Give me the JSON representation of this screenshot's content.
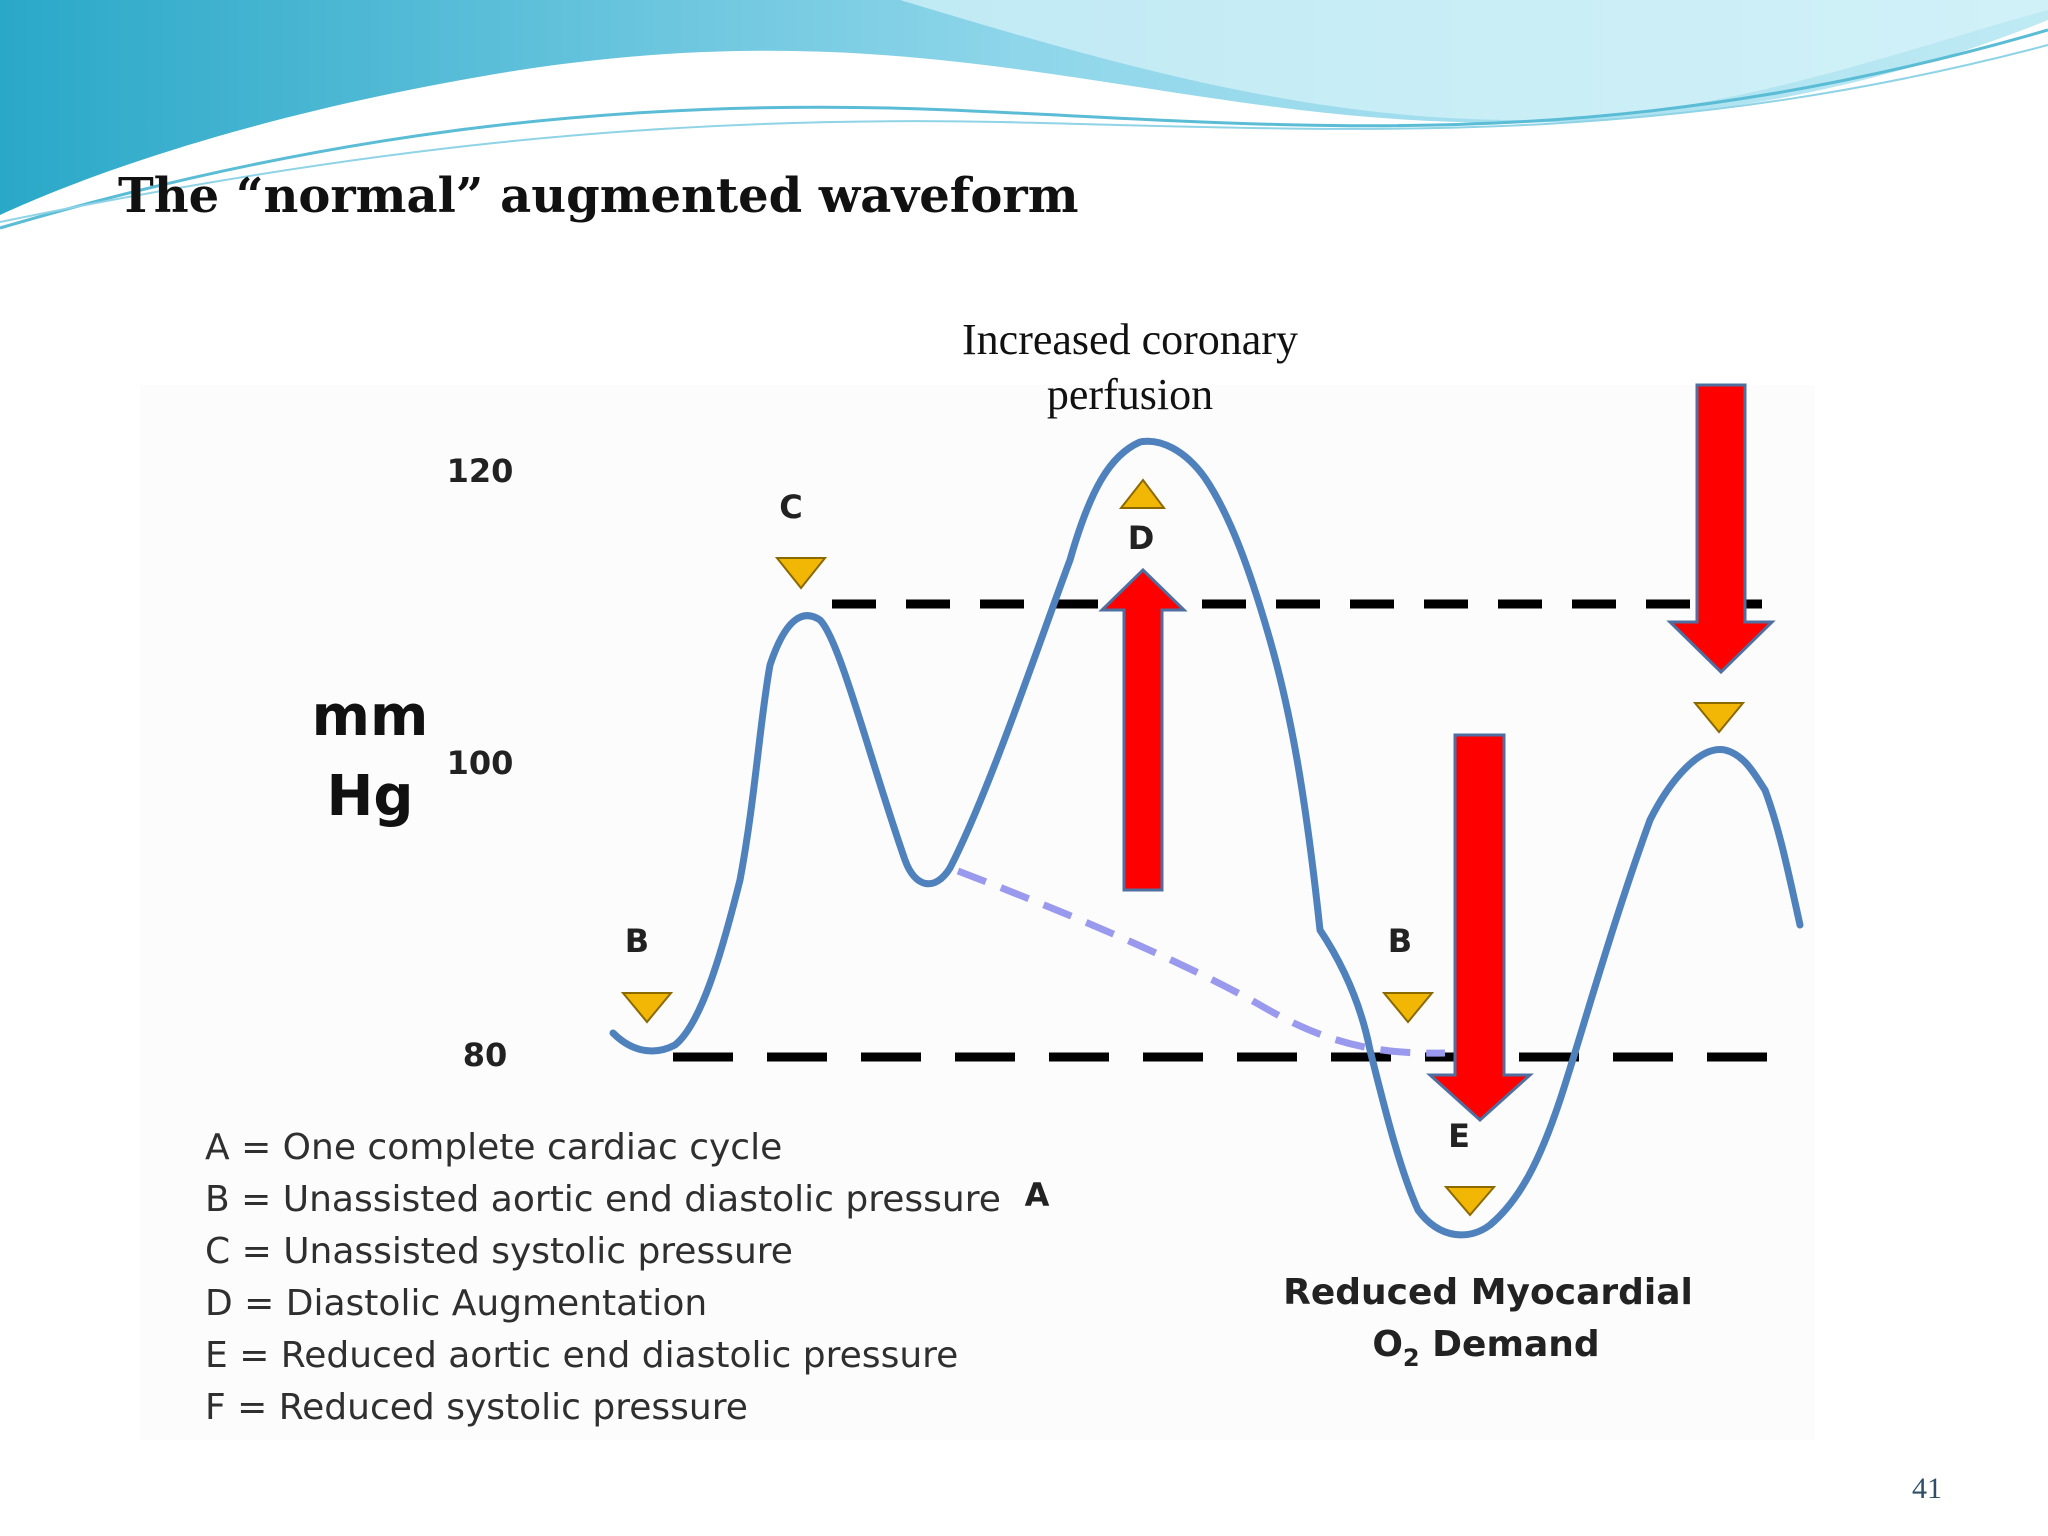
{
  "slide": {
    "title": "The “normal” augmented waveform",
    "page_number": "41"
  },
  "diagram": {
    "caption_line1": "Increased coronary",
    "caption_line2": "perfusion",
    "y_axis": {
      "label_line1": "mm",
      "label_line2": "Hg",
      "ticks": [
        "120",
        "100",
        "80"
      ]
    },
    "point_labels": {
      "b_first": "B",
      "c": "C",
      "d": "D",
      "b_second": "B",
      "e": "E",
      "a": "A"
    },
    "note_line1": "Reduced Myocardial",
    "note_line2_main": "O",
    "note_line2_sub": "2",
    "note_line2_rest": " Demand",
    "legend": [
      "A = One complete cardiac cycle",
      "B = Unassisted aortic end diastolic pressure",
      "C = Unassisted systolic pressure",
      "D = Diastolic Augmentation",
      "E = Reduced aortic end diastolic pressure",
      "F = Reduced systolic pressure"
    ],
    "colors": {
      "waveform": "#4f81bd",
      "unassisted_dashed": "#9999ee",
      "arrow": "#ff0000",
      "marker": "#f2b705",
      "reference_line": "#000000"
    }
  }
}
